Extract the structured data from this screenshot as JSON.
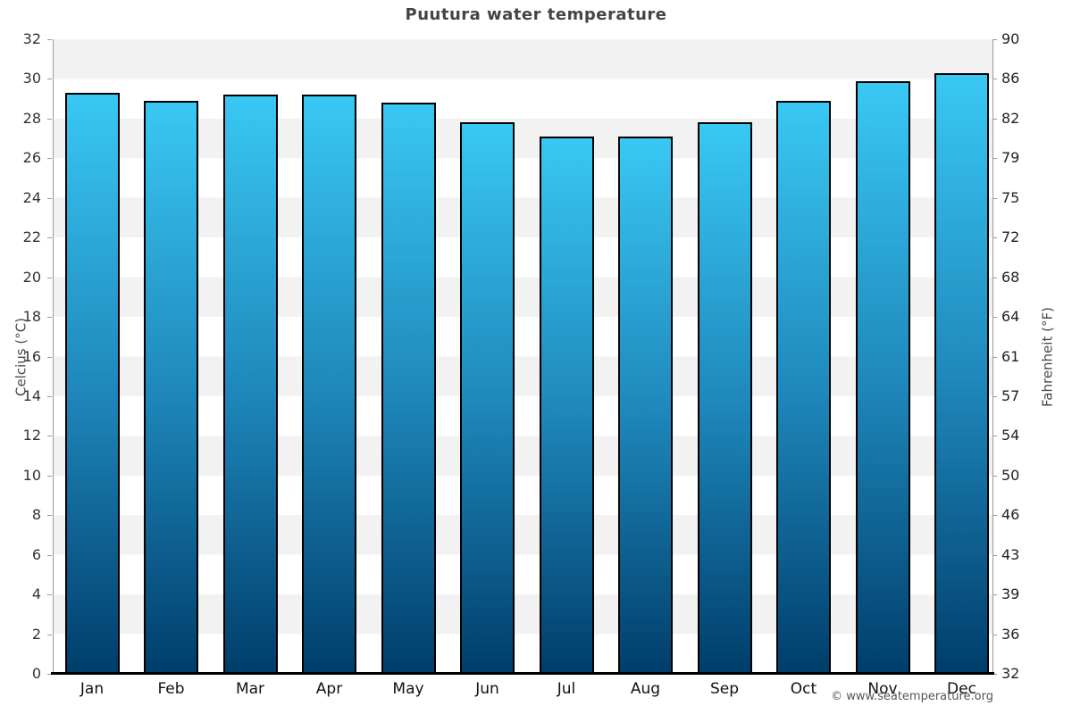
{
  "chart_data": {
    "type": "bar",
    "title": "Puutura water temperature",
    "categories": [
      "Jan",
      "Feb",
      "Mar",
      "Apr",
      "May",
      "Jun",
      "Jul",
      "Aug",
      "Sep",
      "Oct",
      "Nov",
      "Dec"
    ],
    "values": [
      29.3,
      28.9,
      29.2,
      29.2,
      28.8,
      27.8,
      27.1,
      27.1,
      27.8,
      28.9,
      29.9,
      30.3
    ],
    "ylabel_left": "Celcius (°C)",
    "ylabel_right": "Fahrenheit (°F)",
    "xlabel": "",
    "ylim": [
      0,
      32
    ],
    "yticks_left": [
      32,
      30,
      28,
      26,
      24,
      22,
      20,
      18,
      16,
      14,
      12,
      10,
      8,
      6,
      4,
      2,
      0
    ],
    "yticks_right": [
      90,
      86,
      82,
      79,
      75,
      72,
      68,
      64,
      61,
      57,
      54,
      50,
      46,
      43,
      39,
      36,
      32
    ],
    "grid": "alternating horizontal bands every 2°C",
    "legend": "none",
    "colors": {
      "bar_gradient_top": "#39c8f3",
      "bar_gradient_mid": "#1e86ba",
      "bar_gradient_bottom": "#003e6b",
      "bar_border": "#000000",
      "band_gray": "#f2f2f2",
      "background": "#ffffff",
      "title_text": "#444444",
      "axis_line": "#999999",
      "baseline": "#000000"
    }
  },
  "watermark": "© www.seatemperature.org"
}
